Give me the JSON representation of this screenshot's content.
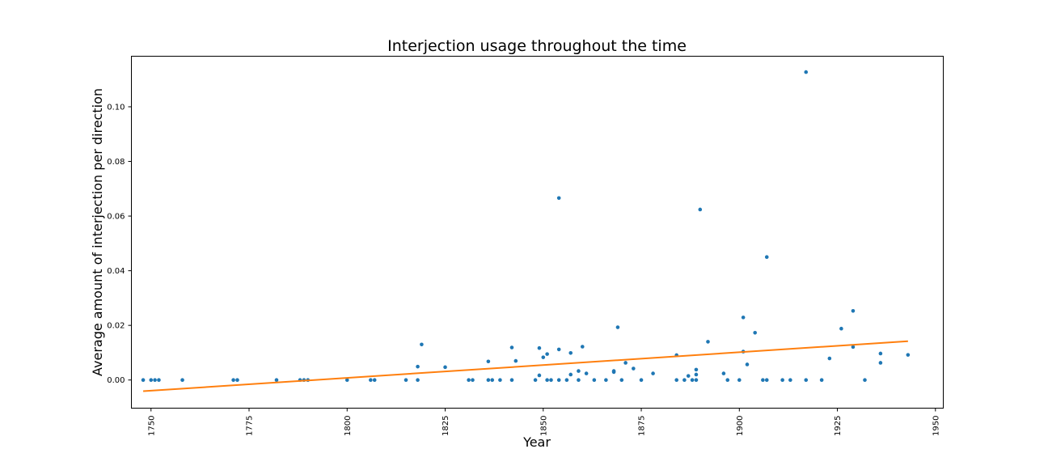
{
  "chart_data": {
    "type": "scatter",
    "title": "Interjection usage throughout the time",
    "xlabel": "Year",
    "ylabel": "Average amount of interjection per direction",
    "xlim": [
      1745,
      1952
    ],
    "ylim": [
      -0.0103,
      0.1185
    ],
    "x_ticks": [
      1750,
      1775,
      1800,
      1825,
      1850,
      1875,
      1900,
      1925,
      1950
    ],
    "y_ticks": [
      0.0,
      0.02,
      0.04,
      0.06,
      0.08,
      0.1
    ],
    "x_tick_labels": [
      "1750",
      "1775",
      "1800",
      "1825",
      "1850",
      "1875",
      "1900",
      "1925",
      "1950"
    ],
    "y_tick_labels": [
      "0.00",
      "0.02",
      "0.04",
      "0.06",
      "0.08",
      "0.10"
    ],
    "grid": false,
    "colors": {
      "points": "#1f77b4",
      "trend": "#ff7f0e"
    },
    "series": [
      {
        "type": "scatter",
        "points": [
          [
            1748,
            0.0
          ],
          [
            1750,
            0.0
          ],
          [
            1751,
            0.0
          ],
          [
            1752,
            0.0
          ],
          [
            1758,
            0.0
          ],
          [
            1771,
            0.0
          ],
          [
            1772,
            0.0
          ],
          [
            1782,
            0.0
          ],
          [
            1788,
            0.0
          ],
          [
            1789,
            0.0
          ],
          [
            1790,
            0.0
          ],
          [
            1800,
            0.0
          ],
          [
            1806,
            0.0
          ],
          [
            1807,
            0.0
          ],
          [
            1815,
            0.0
          ],
          [
            1818,
            0.0
          ],
          [
            1818,
            0.0049
          ],
          [
            1819,
            0.013
          ],
          [
            1825,
            0.0047
          ],
          [
            1831,
            0.0
          ],
          [
            1832,
            0.0
          ],
          [
            1836,
            0.0
          ],
          [
            1836,
            0.0068
          ],
          [
            1837,
            0.0
          ],
          [
            1839,
            0.0
          ],
          [
            1842,
            0.0
          ],
          [
            1842,
            0.0119
          ],
          [
            1843,
            0.007
          ],
          [
            1848,
            0.0
          ],
          [
            1849,
            0.0017
          ],
          [
            1849,
            0.0117
          ],
          [
            1850,
            0.0083
          ],
          [
            1851,
            0.0
          ],
          [
            1851,
            0.0095
          ],
          [
            1852,
            0.0
          ],
          [
            1854,
            0.0
          ],
          [
            1854,
            0.0112
          ],
          [
            1854,
            0.0666
          ],
          [
            1856,
            0.0
          ],
          [
            1857,
            0.002
          ],
          [
            1857,
            0.0099
          ],
          [
            1859,
            0.0
          ],
          [
            1859,
            0.0033
          ],
          [
            1860,
            0.0122
          ],
          [
            1861,
            0.0024
          ],
          [
            1863,
            0.0
          ],
          [
            1866,
            0.0
          ],
          [
            1868,
            0.0029
          ],
          [
            1868,
            0.0033
          ],
          [
            1869,
            0.0193
          ],
          [
            1870,
            0.0
          ],
          [
            1871,
            0.0063
          ],
          [
            1873,
            0.0042
          ],
          [
            1875,
            0.0
          ],
          [
            1878,
            0.0024
          ],
          [
            1884,
            0.0
          ],
          [
            1884,
            0.0091
          ],
          [
            1886,
            0.0
          ],
          [
            1887,
            0.0015
          ],
          [
            1888,
            0.0
          ],
          [
            1889,
            0.0
          ],
          [
            1889,
            0.002
          ],
          [
            1889,
            0.0038
          ],
          [
            1890,
            0.0624
          ],
          [
            1892,
            0.014
          ],
          [
            1896,
            0.0024
          ],
          [
            1897,
            0.0
          ],
          [
            1900,
            0.0
          ],
          [
            1901,
            0.0229
          ],
          [
            1901,
            0.0104
          ],
          [
            1902,
            0.0057
          ],
          [
            1904,
            0.0173
          ],
          [
            1906,
            0.0
          ],
          [
            1907,
            0.0
          ],
          [
            1907,
            0.045
          ],
          [
            1911,
            0.0
          ],
          [
            1913,
            0.0
          ],
          [
            1917,
            0.0
          ],
          [
            1917,
            0.1127
          ],
          [
            1921,
            0.0
          ],
          [
            1923,
            0.0079
          ],
          [
            1926,
            0.0188
          ],
          [
            1929,
            0.0121
          ],
          [
            1929,
            0.0253
          ],
          [
            1932,
            0.0
          ],
          [
            1936,
            0.0097
          ],
          [
            1936,
            0.0063
          ],
          [
            1943,
            0.0092
          ]
        ]
      },
      {
        "type": "line",
        "points": [
          [
            1748,
            -0.0041
          ],
          [
            1943,
            0.0142
          ]
        ]
      }
    ]
  }
}
